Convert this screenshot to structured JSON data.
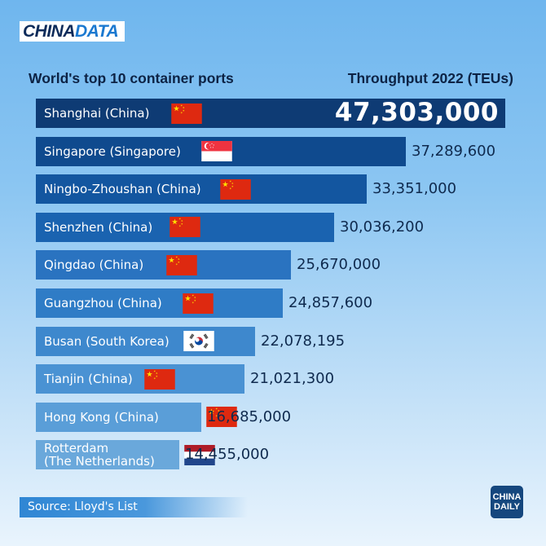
{
  "brand": {
    "logo_part1": "CHINA",
    "logo_part2": "DATA",
    "badge_line1": "CHINA",
    "badge_line2": "DAILY"
  },
  "source": "Source: Lloyd's List",
  "chart_data": {
    "type": "bar",
    "orientation": "horizontal",
    "title": "World's top 10 container ports",
    "value_title": "Throughput 2022 (TEUs)",
    "categories": [
      "Shanghai (China)",
      "Singapore (Singapore)",
      "Ningbo-Zhoushan (China)",
      "Shenzhen (China)",
      "Qingdao (China)",
      "Guangzhou (China)",
      "Busan (South Korea)",
      "Tianjin (China)",
      "Hong Kong (China)",
      "Rotterdam\n(The Netherlands)"
    ],
    "values": [
      47303000,
      37289600,
      33351000,
      30036200,
      25670000,
      24857600,
      22078195,
      21021300,
      16685000,
      14455000
    ],
    "value_labels": [
      "47,303,000",
      "37,289,600",
      "33,351,000",
      "30,036,200",
      "25,670,000",
      "24,857,600",
      "22,078,195",
      "21,021,300",
      "16,685,000",
      "14,455,000"
    ],
    "flags": [
      "china-flag",
      "singapore-flag",
      "china-flag",
      "china-flag",
      "china-flag",
      "china-flag",
      "south-korea-flag",
      "china-flag",
      "china-flag",
      "netherlands-flag"
    ],
    "bar_colors": [
      "#0e3b74",
      "#0f4a8e",
      "#1356a0",
      "#1a63b0",
      "#2a73c0",
      "#2f7cc6",
      "#3e88cd",
      "#4a92d3",
      "#5a9ed8",
      "#6aa8db"
    ],
    "colors": {
      "china_red": "#de2910",
      "china_star": "#ffde00",
      "singapore_red": "#ef3340",
      "nl_red": "#ae1c28",
      "nl_blue": "#21468b",
      "korea_red": "#cd2e3a",
      "korea_blue": "#0047a0"
    }
  }
}
